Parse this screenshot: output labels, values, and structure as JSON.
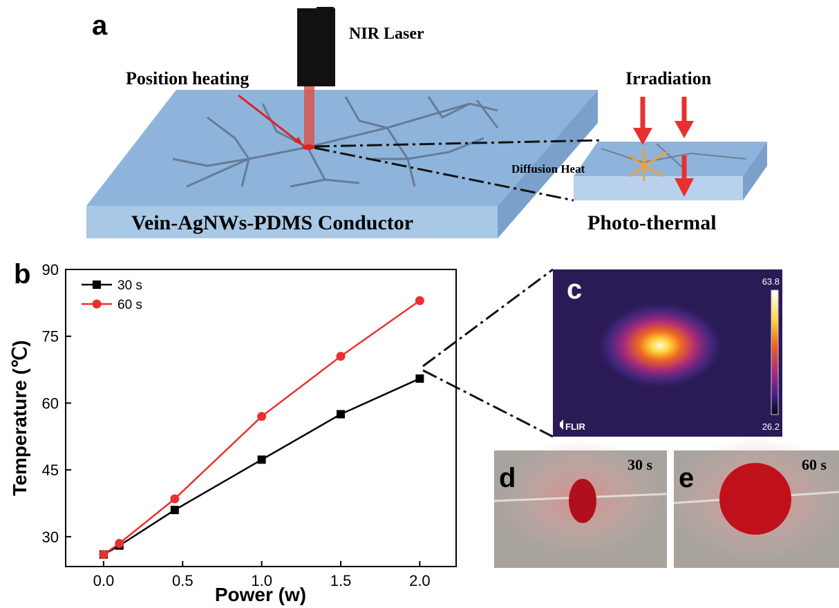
{
  "panel_a": {
    "label": "a",
    "laser": "NIR Laser",
    "pointer": "Position heating",
    "irradiation": "Irradiation",
    "diffusion": "Diffusion Heat",
    "conductor": "Vein-AgNWs-PDMS Conductor",
    "effect": "Photo-thermal"
  },
  "chart_data": {
    "type": "line",
    "panel_label": "b",
    "x_label": "Power (w)",
    "y_label": "Temperature (℃)",
    "x": [
      0,
      0.1,
      0.45,
      1.0,
      1.5,
      2.0
    ],
    "series": [
      {
        "name": "30 s",
        "color": "#000000",
        "marker": "square",
        "values": [
          26,
          28,
          36,
          47.3,
          57.5,
          65.5
        ]
      },
      {
        "name": "60 s",
        "color": "#e8312f",
        "marker": "circle",
        "values": [
          26,
          28.5,
          38.5,
          57,
          70.5,
          83
        ]
      }
    ],
    "xlim": [
      -0.24,
      2.23
    ],
    "ylim": [
      23.3,
      90
    ],
    "xticks": [
      {
        "value": 0,
        "label": "0.0"
      },
      {
        "value": 0.5,
        "label": "0.5"
      },
      {
        "value": 1,
        "label": "1.0"
      },
      {
        "value": 1.5,
        "label": "1.5"
      },
      {
        "value": 2,
        "label": "2.0"
      }
    ],
    "yticks": [
      30,
      45,
      60,
      75,
      90
    ],
    "legend": "upper left",
    "grid": false
  },
  "panel_c": {
    "label": "c",
    "max": "63.8",
    "min": "26.2",
    "brand": "FLIR"
  },
  "panel_d": {
    "label": "d",
    "time": "30 s"
  },
  "panel_e": {
    "label": "e",
    "time": "60 s"
  }
}
